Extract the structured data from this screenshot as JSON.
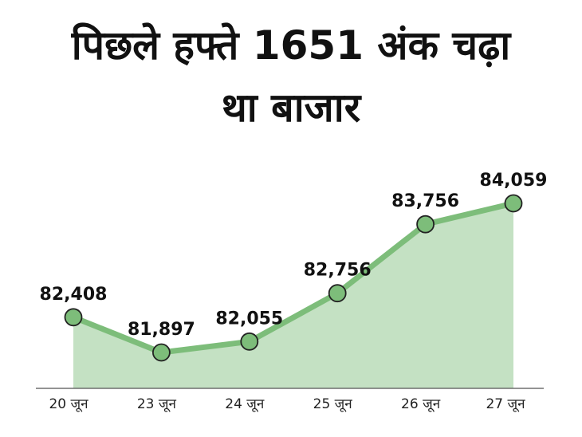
{
  "chart_data": {
    "type": "area",
    "title": "पिछले हफ्ते 1651 अंक चढ़ा था बाजार",
    "categories": [
      "20 जून",
      "23 जून",
      "24 जून",
      "25 जून",
      "26 जून",
      "27 जून"
    ],
    "values": [
      82408,
      81897,
      82055,
      82756,
      83756,
      84059
    ],
    "value_labels": [
      "82,408",
      "81,897",
      "82,055",
      "82,756",
      "83,756",
      "84,059"
    ],
    "color": "#7dbd7a",
    "fill_color": "#c4e1c3"
  }
}
